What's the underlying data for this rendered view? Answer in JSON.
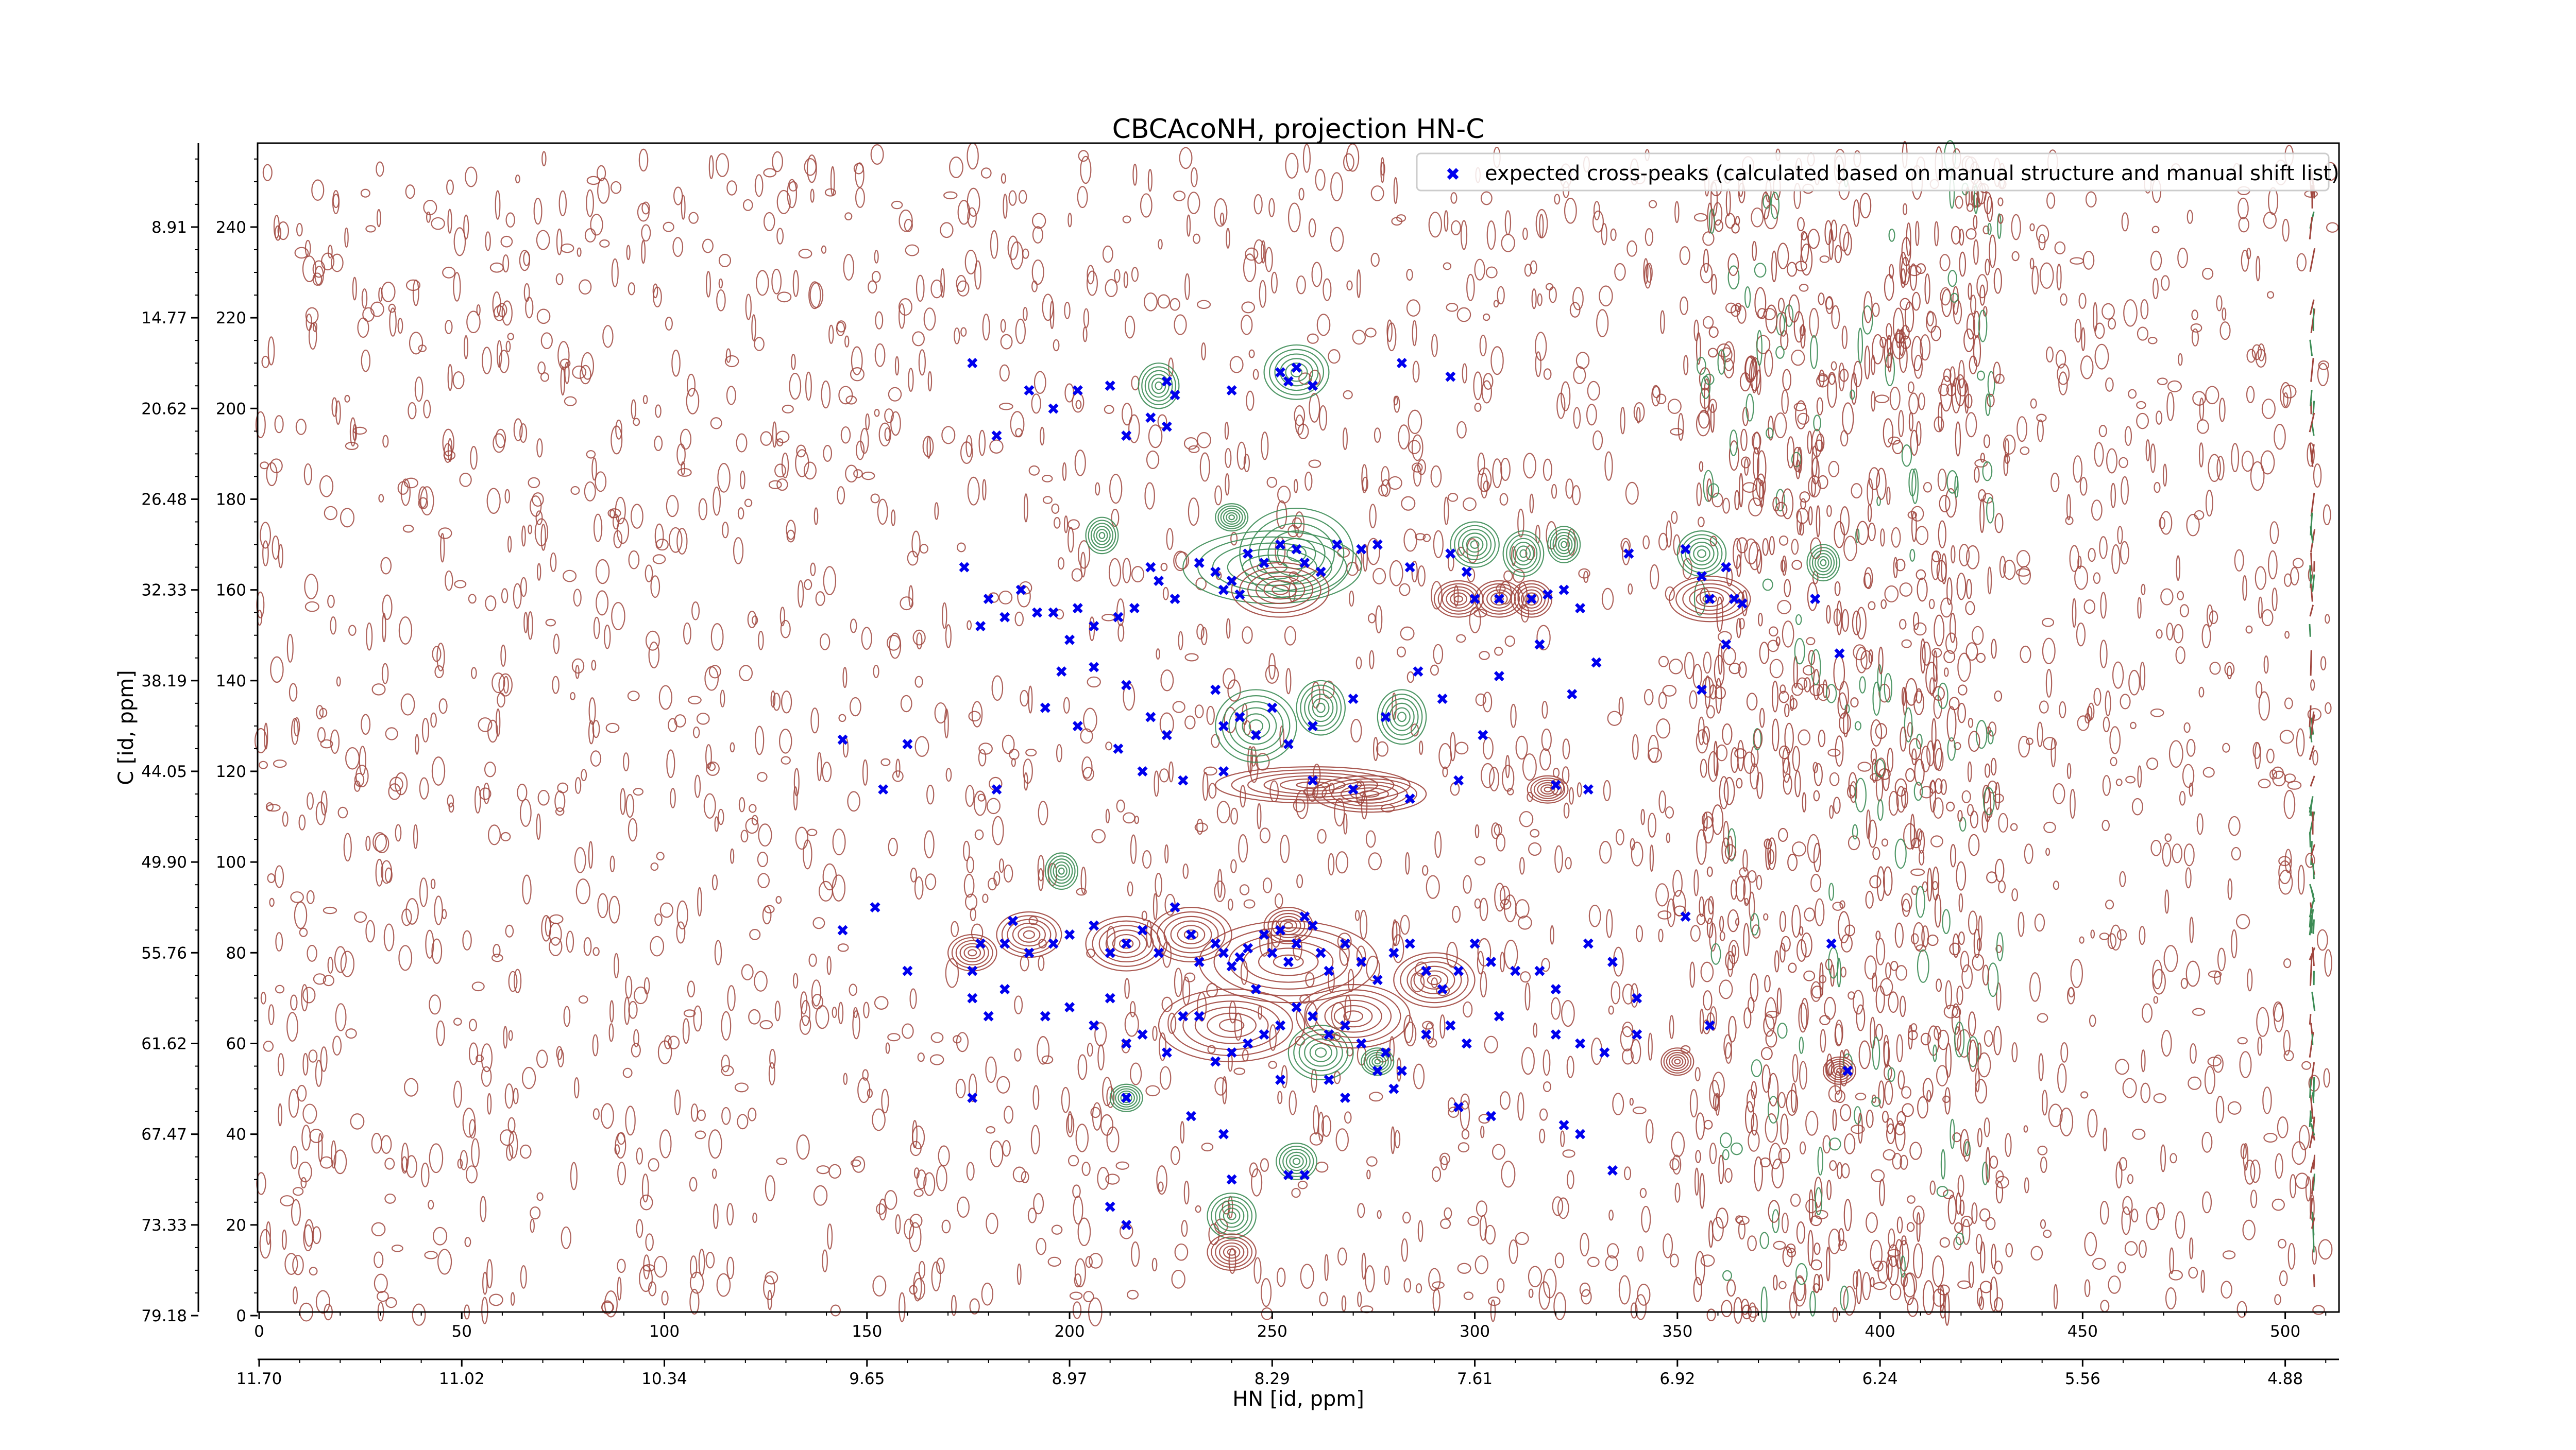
{
  "chart_data": {
    "type": "scatter",
    "title": "CBCAcoNH, projection HN-C",
    "xlabel": "HN [id, ppm]",
    "ylabel": "C [id, ppm]",
    "xlim": [
      0,
      512
    ],
    "ylim": [
      0,
      256
    ],
    "x_ticks": [
      0,
      50,
      100,
      150,
      200,
      250,
      300,
      350,
      400,
      450,
      500
    ],
    "y_ticks": [
      0,
      20,
      40,
      60,
      80,
      100,
      120,
      140,
      160,
      180,
      200,
      220,
      240
    ],
    "x_secondary_ticks": [
      "11.70",
      "11.02",
      "10.34",
      "9.65",
      "8.97",
      "8.29",
      "7.61",
      "6.92",
      "6.24",
      "5.56",
      "4.88"
    ],
    "y_secondary_ticks": [
      "79.18",
      "73.33",
      "67.47",
      "61.62",
      "55.76",
      "49.90",
      "44.05",
      "38.19",
      "32.33",
      "26.48",
      "20.62",
      "14.77",
      "8.91"
    ],
    "legend": {
      "position": "top-right",
      "entries": [
        "expected cross-peaks (calculated based on manual structure and manual shift list)"
      ]
    },
    "colors": {
      "peaks": "#0000ee",
      "positive_contour": "#a0463e",
      "negative_contour": "#3c8c55"
    },
    "series": [
      {
        "name": "expected cross-peaks (calculated based on manual structure and manual shift list)",
        "points": [
          [
            176,
            210
          ],
          [
            190,
            204
          ],
          [
            182,
            194
          ],
          [
            196,
            200
          ],
          [
            202,
            204
          ],
          [
            210,
            205
          ],
          [
            224,
            206
          ],
          [
            226,
            203
          ],
          [
            220,
            198
          ],
          [
            224,
            196
          ],
          [
            214,
            194
          ],
          [
            240,
            204
          ],
          [
            252,
            208
          ],
          [
            256,
            209
          ],
          [
            254,
            206
          ],
          [
            260,
            205
          ],
          [
            282,
            210
          ],
          [
            294,
            207
          ],
          [
            174,
            165
          ],
          [
            180,
            158
          ],
          [
            178,
            152
          ],
          [
            184,
            154
          ],
          [
            188,
            160
          ],
          [
            192,
            155
          ],
          [
            196,
            155
          ],
          [
            200,
            149
          ],
          [
            202,
            156
          ],
          [
            206,
            152
          ],
          [
            212,
            154
          ],
          [
            216,
            156
          ],
          [
            220,
            165
          ],
          [
            222,
            162
          ],
          [
            226,
            158
          ],
          [
            232,
            166
          ],
          [
            236,
            164
          ],
          [
            238,
            160
          ],
          [
            240,
            162
          ],
          [
            242,
            159
          ],
          [
            244,
            168
          ],
          [
            248,
            166
          ],
          [
            252,
            170
          ],
          [
            256,
            169
          ],
          [
            258,
            166
          ],
          [
            262,
            164
          ],
          [
            266,
            170
          ],
          [
            272,
            169
          ],
          [
            276,
            170
          ],
          [
            284,
            165
          ],
          [
            294,
            168
          ],
          [
            298,
            164
          ],
          [
            300,
            158
          ],
          [
            306,
            158
          ],
          [
            314,
            158
          ],
          [
            318,
            159
          ],
          [
            322,
            160
          ],
          [
            326,
            156
          ],
          [
            338,
            168
          ],
          [
            352,
            169
          ],
          [
            356,
            163
          ],
          [
            358,
            158
          ],
          [
            362,
            165
          ],
          [
            364,
            158
          ],
          [
            366,
            157
          ],
          [
            384,
            158
          ],
          [
            390,
            146
          ],
          [
            194,
            134
          ],
          [
            198,
            142
          ],
          [
            202,
            130
          ],
          [
            206,
            143
          ],
          [
            214,
            139
          ],
          [
            220,
            132
          ],
          [
            224,
            128
          ],
          [
            236,
            138
          ],
          [
            238,
            130
          ],
          [
            242,
            132
          ],
          [
            246,
            128
          ],
          [
            250,
            134
          ],
          [
            254,
            126
          ],
          [
            260,
            130
          ],
          [
            270,
            136
          ],
          [
            278,
            132
          ],
          [
            286,
            142
          ],
          [
            292,
            136
          ],
          [
            302,
            128
          ],
          [
            306,
            141
          ],
          [
            316,
            148
          ],
          [
            324,
            137
          ],
          [
            330,
            144
          ],
          [
            356,
            138
          ],
          [
            362,
            148
          ],
          [
            144,
            127
          ],
          [
            154,
            116
          ],
          [
            160,
            126
          ],
          [
            182,
            116
          ],
          [
            212,
            125
          ],
          [
            218,
            120
          ],
          [
            228,
            118
          ],
          [
            238,
            120
          ],
          [
            260,
            118
          ],
          [
            270,
            116
          ],
          [
            284,
            114
          ],
          [
            296,
            118
          ],
          [
            320,
            117
          ],
          [
            328,
            116
          ],
          [
            144,
            85
          ],
          [
            152,
            90
          ],
          [
            160,
            76
          ],
          [
            176,
            76
          ],
          [
            178,
            82
          ],
          [
            184,
            82
          ],
          [
            186,
            87
          ],
          [
            190,
            80
          ],
          [
            196,
            82
          ],
          [
            200,
            84
          ],
          [
            206,
            86
          ],
          [
            210,
            80
          ],
          [
            214,
            82
          ],
          [
            218,
            85
          ],
          [
            222,
            80
          ],
          [
            226,
            90
          ],
          [
            230,
            84
          ],
          [
            232,
            78
          ],
          [
            236,
            82
          ],
          [
            238,
            80
          ],
          [
            240,
            77
          ],
          [
            242,
            79
          ],
          [
            244,
            81
          ],
          [
            246,
            72
          ],
          [
            248,
            84
          ],
          [
            250,
            80
          ],
          [
            252,
            85
          ],
          [
            254,
            78
          ],
          [
            256,
            82
          ],
          [
            258,
            88
          ],
          [
            260,
            86
          ],
          [
            262,
            80
          ],
          [
            264,
            76
          ],
          [
            268,
            82
          ],
          [
            272,
            78
          ],
          [
            276,
            74
          ],
          [
            280,
            80
          ],
          [
            284,
            82
          ],
          [
            288,
            76
          ],
          [
            292,
            72
          ],
          [
            296,
            76
          ],
          [
            300,
            82
          ],
          [
            304,
            78
          ],
          [
            310,
            76
          ],
          [
            316,
            76
          ],
          [
            320,
            72
          ],
          [
            328,
            82
          ],
          [
            334,
            78
          ],
          [
            340,
            70
          ],
          [
            352,
            88
          ],
          [
            388,
            82
          ],
          [
            176,
            70
          ],
          [
            180,
            66
          ],
          [
            184,
            72
          ],
          [
            194,
            66
          ],
          [
            200,
            68
          ],
          [
            206,
            64
          ],
          [
            210,
            70
          ],
          [
            214,
            60
          ],
          [
            218,
            62
          ],
          [
            224,
            58
          ],
          [
            228,
            66
          ],
          [
            232,
            66
          ],
          [
            236,
            56
          ],
          [
            240,
            58
          ],
          [
            244,
            60
          ],
          [
            248,
            62
          ],
          [
            252,
            64
          ],
          [
            256,
            68
          ],
          [
            260,
            66
          ],
          [
            264,
            62
          ],
          [
            268,
            64
          ],
          [
            272,
            60
          ],
          [
            278,
            58
          ],
          [
            282,
            54
          ],
          [
            288,
            62
          ],
          [
            294,
            64
          ],
          [
            298,
            60
          ],
          [
            306,
            66
          ],
          [
            320,
            62
          ],
          [
            326,
            60
          ],
          [
            332,
            58
          ],
          [
            340,
            62
          ],
          [
            358,
            64
          ],
          [
            392,
            54
          ],
          [
            176,
            48
          ],
          [
            214,
            48
          ],
          [
            230,
            44
          ],
          [
            238,
            40
          ],
          [
            252,
            52
          ],
          [
            264,
            52
          ],
          [
            268,
            48
          ],
          [
            276,
            54
          ],
          [
            280,
            50
          ],
          [
            296,
            46
          ],
          [
            304,
            44
          ],
          [
            322,
            42
          ],
          [
            326,
            40
          ],
          [
            334,
            32
          ],
          [
            240,
            30
          ],
          [
            254,
            31
          ],
          [
            258,
            31
          ],
          [
            210,
            24
          ],
          [
            214,
            20
          ]
        ]
      }
    ]
  }
}
